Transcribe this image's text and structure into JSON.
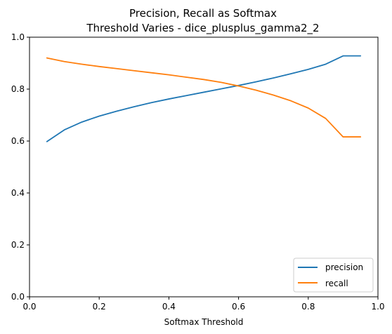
{
  "chart_data": {
    "type": "line",
    "title": [
      "Precision, Recall as Softmax",
      "Threshold Varies - dice_plusplus_gamma2_2"
    ],
    "xlabel": "Softmax Threshold",
    "ylabel": "",
    "xlim": [
      0.0,
      1.0
    ],
    "ylim": [
      0.0,
      1.0
    ],
    "xticks": [
      "0.0",
      "0.2",
      "0.4",
      "0.6",
      "0.8",
      "1.0"
    ],
    "yticks": [
      "0.0",
      "0.2",
      "0.4",
      "0.6",
      "0.8",
      "1.0"
    ],
    "grid": false,
    "legend_position": "bottom-right",
    "x": [
      0.05,
      0.1,
      0.15,
      0.2,
      0.25,
      0.3,
      0.35,
      0.4,
      0.45,
      0.5,
      0.55,
      0.6,
      0.65,
      0.7,
      0.75,
      0.8,
      0.85,
      0.9,
      0.95
    ],
    "series": [
      {
        "name": "precision",
        "color": "#1f77b4",
        "values": [
          0.598,
          0.643,
          0.673,
          0.696,
          0.715,
          0.732,
          0.748,
          0.762,
          0.775,
          0.788,
          0.801,
          0.814,
          0.828,
          0.843,
          0.859,
          0.876,
          0.896,
          0.928,
          0.928
        ]
      },
      {
        "name": "recall",
        "color": "#ff7f0e",
        "values": [
          0.92,
          0.906,
          0.896,
          0.887,
          0.879,
          0.871,
          0.863,
          0.855,
          0.846,
          0.837,
          0.826,
          0.812,
          0.796,
          0.777,
          0.755,
          0.727,
          0.687,
          0.616,
          0.616
        ]
      }
    ]
  }
}
